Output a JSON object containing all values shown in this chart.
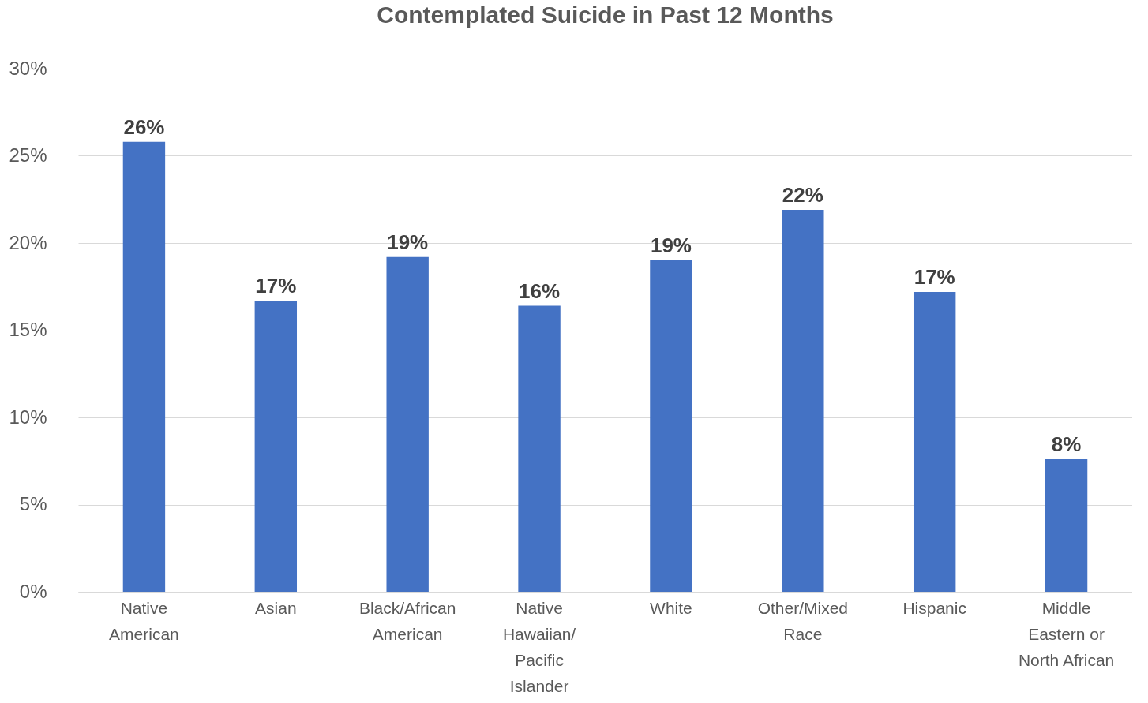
{
  "chart_data": {
    "type": "bar",
    "title": "Contemplated Suicide in Past 12 Months",
    "categories": [
      "Native American",
      "Asian",
      "Black/African American",
      "Native Hawaiian/ Pacific Islander",
      "White",
      "Other/Mixed Race",
      "Hispanic",
      "Middle Eastern or North African"
    ],
    "values": [
      25.8,
      16.7,
      19.2,
      16.4,
      19.0,
      21.9,
      17.2,
      7.6
    ],
    "value_labels": [
      "26%",
      "17%",
      "19%",
      "16%",
      "19%",
      "22%",
      "17%",
      "8%"
    ],
    "color": "#4472c4",
    "ylim": [
      0,
      30
    ],
    "yticks": [
      {
        "value": 0,
        "label": "0%"
      },
      {
        "value": 5,
        "label": "5%"
      },
      {
        "value": 10,
        "label": "10%"
      },
      {
        "value": 15,
        "label": "15%"
      },
      {
        "value": 20,
        "label": "20%"
      },
      {
        "value": 25,
        "label": "25%"
      },
      {
        "value": 30,
        "label": "30%"
      }
    ],
    "grid": "y"
  }
}
